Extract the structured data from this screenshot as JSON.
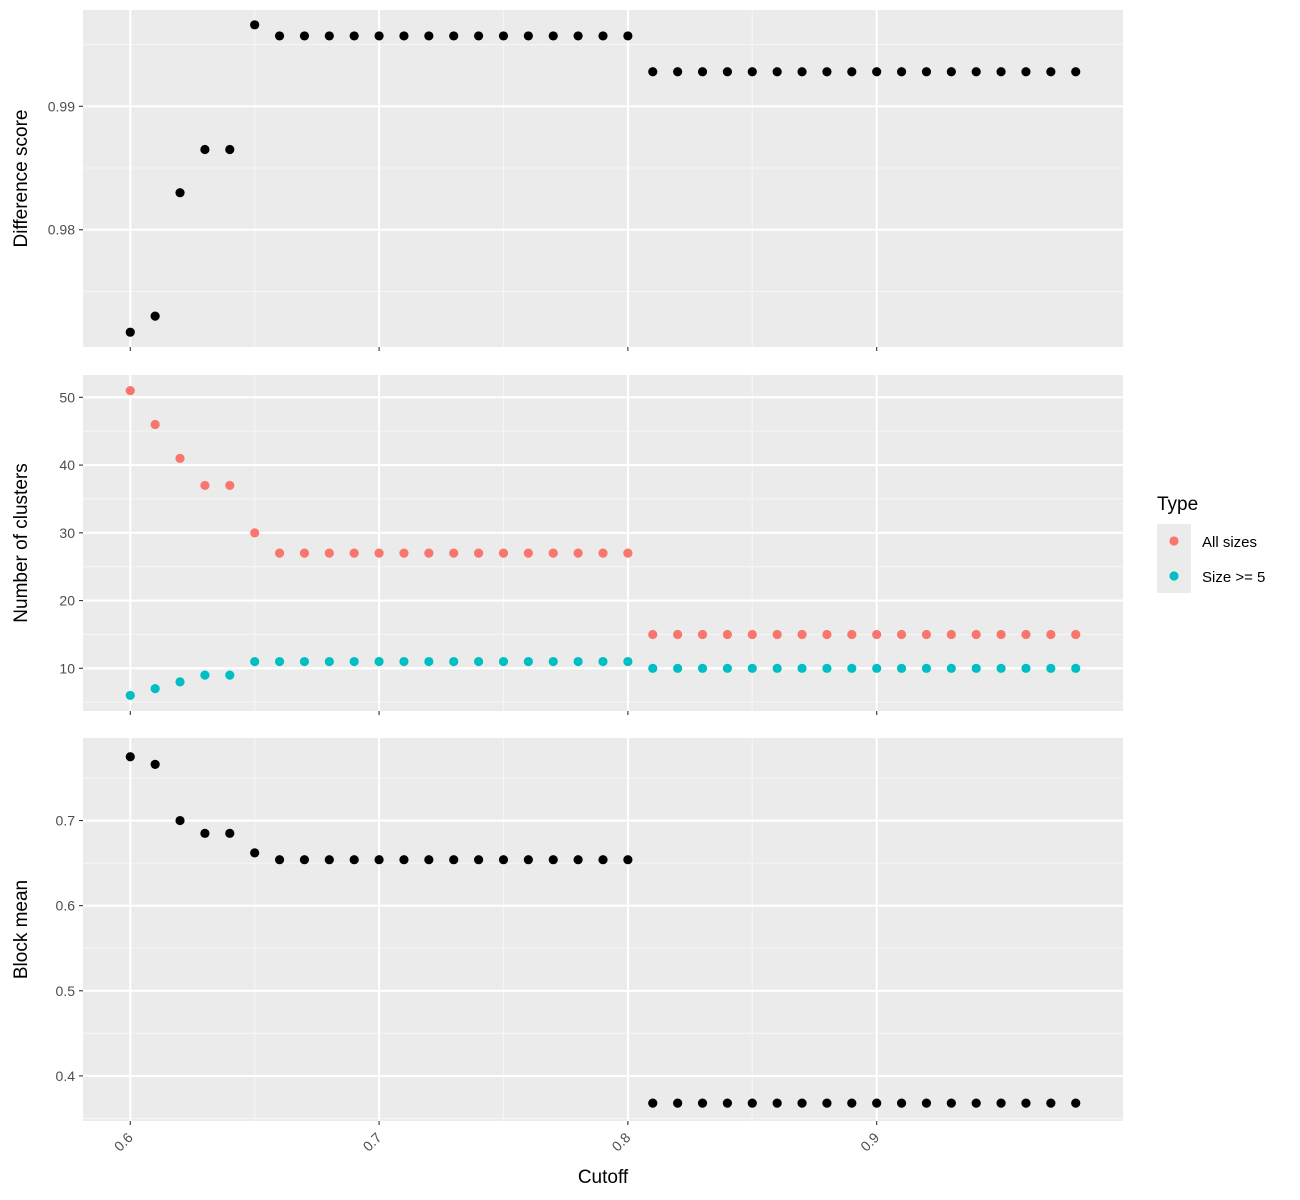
{
  "chart_data": {
    "type": "scatter",
    "xlabel": "Cutoff",
    "x_ticks": [
      0.6,
      0.7,
      0.8,
      0.9
    ],
    "x_tick_labels": [
      "0.6",
      "0.7",
      "0.8",
      "0.9"
    ],
    "xlim": [
      0.581,
      0.999
    ],
    "x": [
      0.6,
      0.61,
      0.62,
      0.63,
      0.64,
      0.65,
      0.66,
      0.67,
      0.68,
      0.69,
      0.7,
      0.71,
      0.72,
      0.73,
      0.74,
      0.75,
      0.76,
      0.77,
      0.78,
      0.79,
      0.8,
      0.81,
      0.82,
      0.83,
      0.84,
      0.85,
      0.86,
      0.87,
      0.88,
      0.89,
      0.9,
      0.91,
      0.92,
      0.93,
      0.94,
      0.95,
      0.96,
      0.97,
      0.98
    ],
    "grid": true,
    "point_color": "#000000",
    "panels": [
      {
        "ylabel": "Difference score",
        "ylim": [
          0.9705,
          0.9978
        ],
        "y_ticks": [
          0.98,
          0.99
        ],
        "y_tick_labels": [
          "0.98",
          "0.99"
        ],
        "series": [
          {
            "values": [
              0.9717,
              0.973,
              0.983,
              0.9865,
              0.9865,
              0.9966,
              0.9957,
              0.9957,
              0.9957,
              0.9957,
              0.9957,
              0.9957,
              0.9957,
              0.9957,
              0.9957,
              0.9957,
              0.9957,
              0.9957,
              0.9957,
              0.9957,
              0.9957,
              0.9928,
              0.9928,
              0.9928,
              0.9928,
              0.9928,
              0.9928,
              0.9928,
              0.9928,
              0.9928,
              0.9928,
              0.9928,
              0.9928,
              0.9928,
              0.9928,
              0.9928,
              0.9928,
              0.9928,
              0.9928
            ]
          }
        ]
      },
      {
        "ylabel": "Number of clusters",
        "ylim": [
          3.7,
          53.3
        ],
        "y_ticks": [
          10,
          20,
          30,
          40,
          50
        ],
        "y_tick_labels": [
          "10",
          "20",
          "30",
          "40",
          "50"
        ],
        "series": [
          {
            "name": "All sizes",
            "color": "#F8766D",
            "values": [
              51,
              46,
              41,
              37,
              37,
              30,
              27,
              27,
              27,
              27,
              27,
              27,
              27,
              27,
              27,
              27,
              27,
              27,
              27,
              27,
              27,
              15,
              15,
              15,
              15,
              15,
              15,
              15,
              15,
              15,
              15,
              15,
              15,
              15,
              15,
              15,
              15,
              15,
              15
            ]
          },
          {
            "name": "Size >= 5",
            "color": "#00BFC4",
            "values": [
              6,
              7,
              8,
              9,
              9,
              11,
              11,
              11,
              11,
              11,
              11,
              11,
              11,
              11,
              11,
              11,
              11,
              11,
              11,
              11,
              11,
              10,
              10,
              10,
              10,
              10,
              10,
              10,
              10,
              10,
              10,
              10,
              10,
              10,
              10,
              10,
              10,
              10,
              10
            ]
          }
        ]
      },
      {
        "ylabel": "Block mean",
        "ylim": [
          0.347,
          0.797
        ],
        "y_ticks": [
          0.4,
          0.5,
          0.6,
          0.7
        ],
        "y_tick_labels": [
          "0.4",
          "0.5",
          "0.6",
          "0.7"
        ],
        "series": [
          {
            "values": [
              0.775,
              0.766,
              0.7,
              0.685,
              0.685,
              0.662,
              0.654,
              0.654,
              0.654,
              0.654,
              0.654,
              0.654,
              0.654,
              0.654,
              0.654,
              0.654,
              0.654,
              0.654,
              0.654,
              0.654,
              0.654,
              0.368,
              0.368,
              0.368,
              0.368,
              0.368,
              0.368,
              0.368,
              0.368,
              0.368,
              0.368,
              0.368,
              0.368,
              0.368,
              0.368,
              0.368,
              0.368,
              0.368,
              0.368
            ]
          }
        ]
      }
    ],
    "legend": {
      "title": "Type",
      "position": "right",
      "items": [
        {
          "label": "All sizes",
          "color": "#F8766D"
        },
        {
          "label": "Size >= 5",
          "color": "#00BFC4"
        }
      ]
    },
    "colors": {
      "panel_bg": "#EBEBEB",
      "grid_major": "#FFFFFF",
      "grid_minor": "#F5F5F5",
      "tick": "#333333",
      "tick_label": "#4D4D4D"
    }
  }
}
